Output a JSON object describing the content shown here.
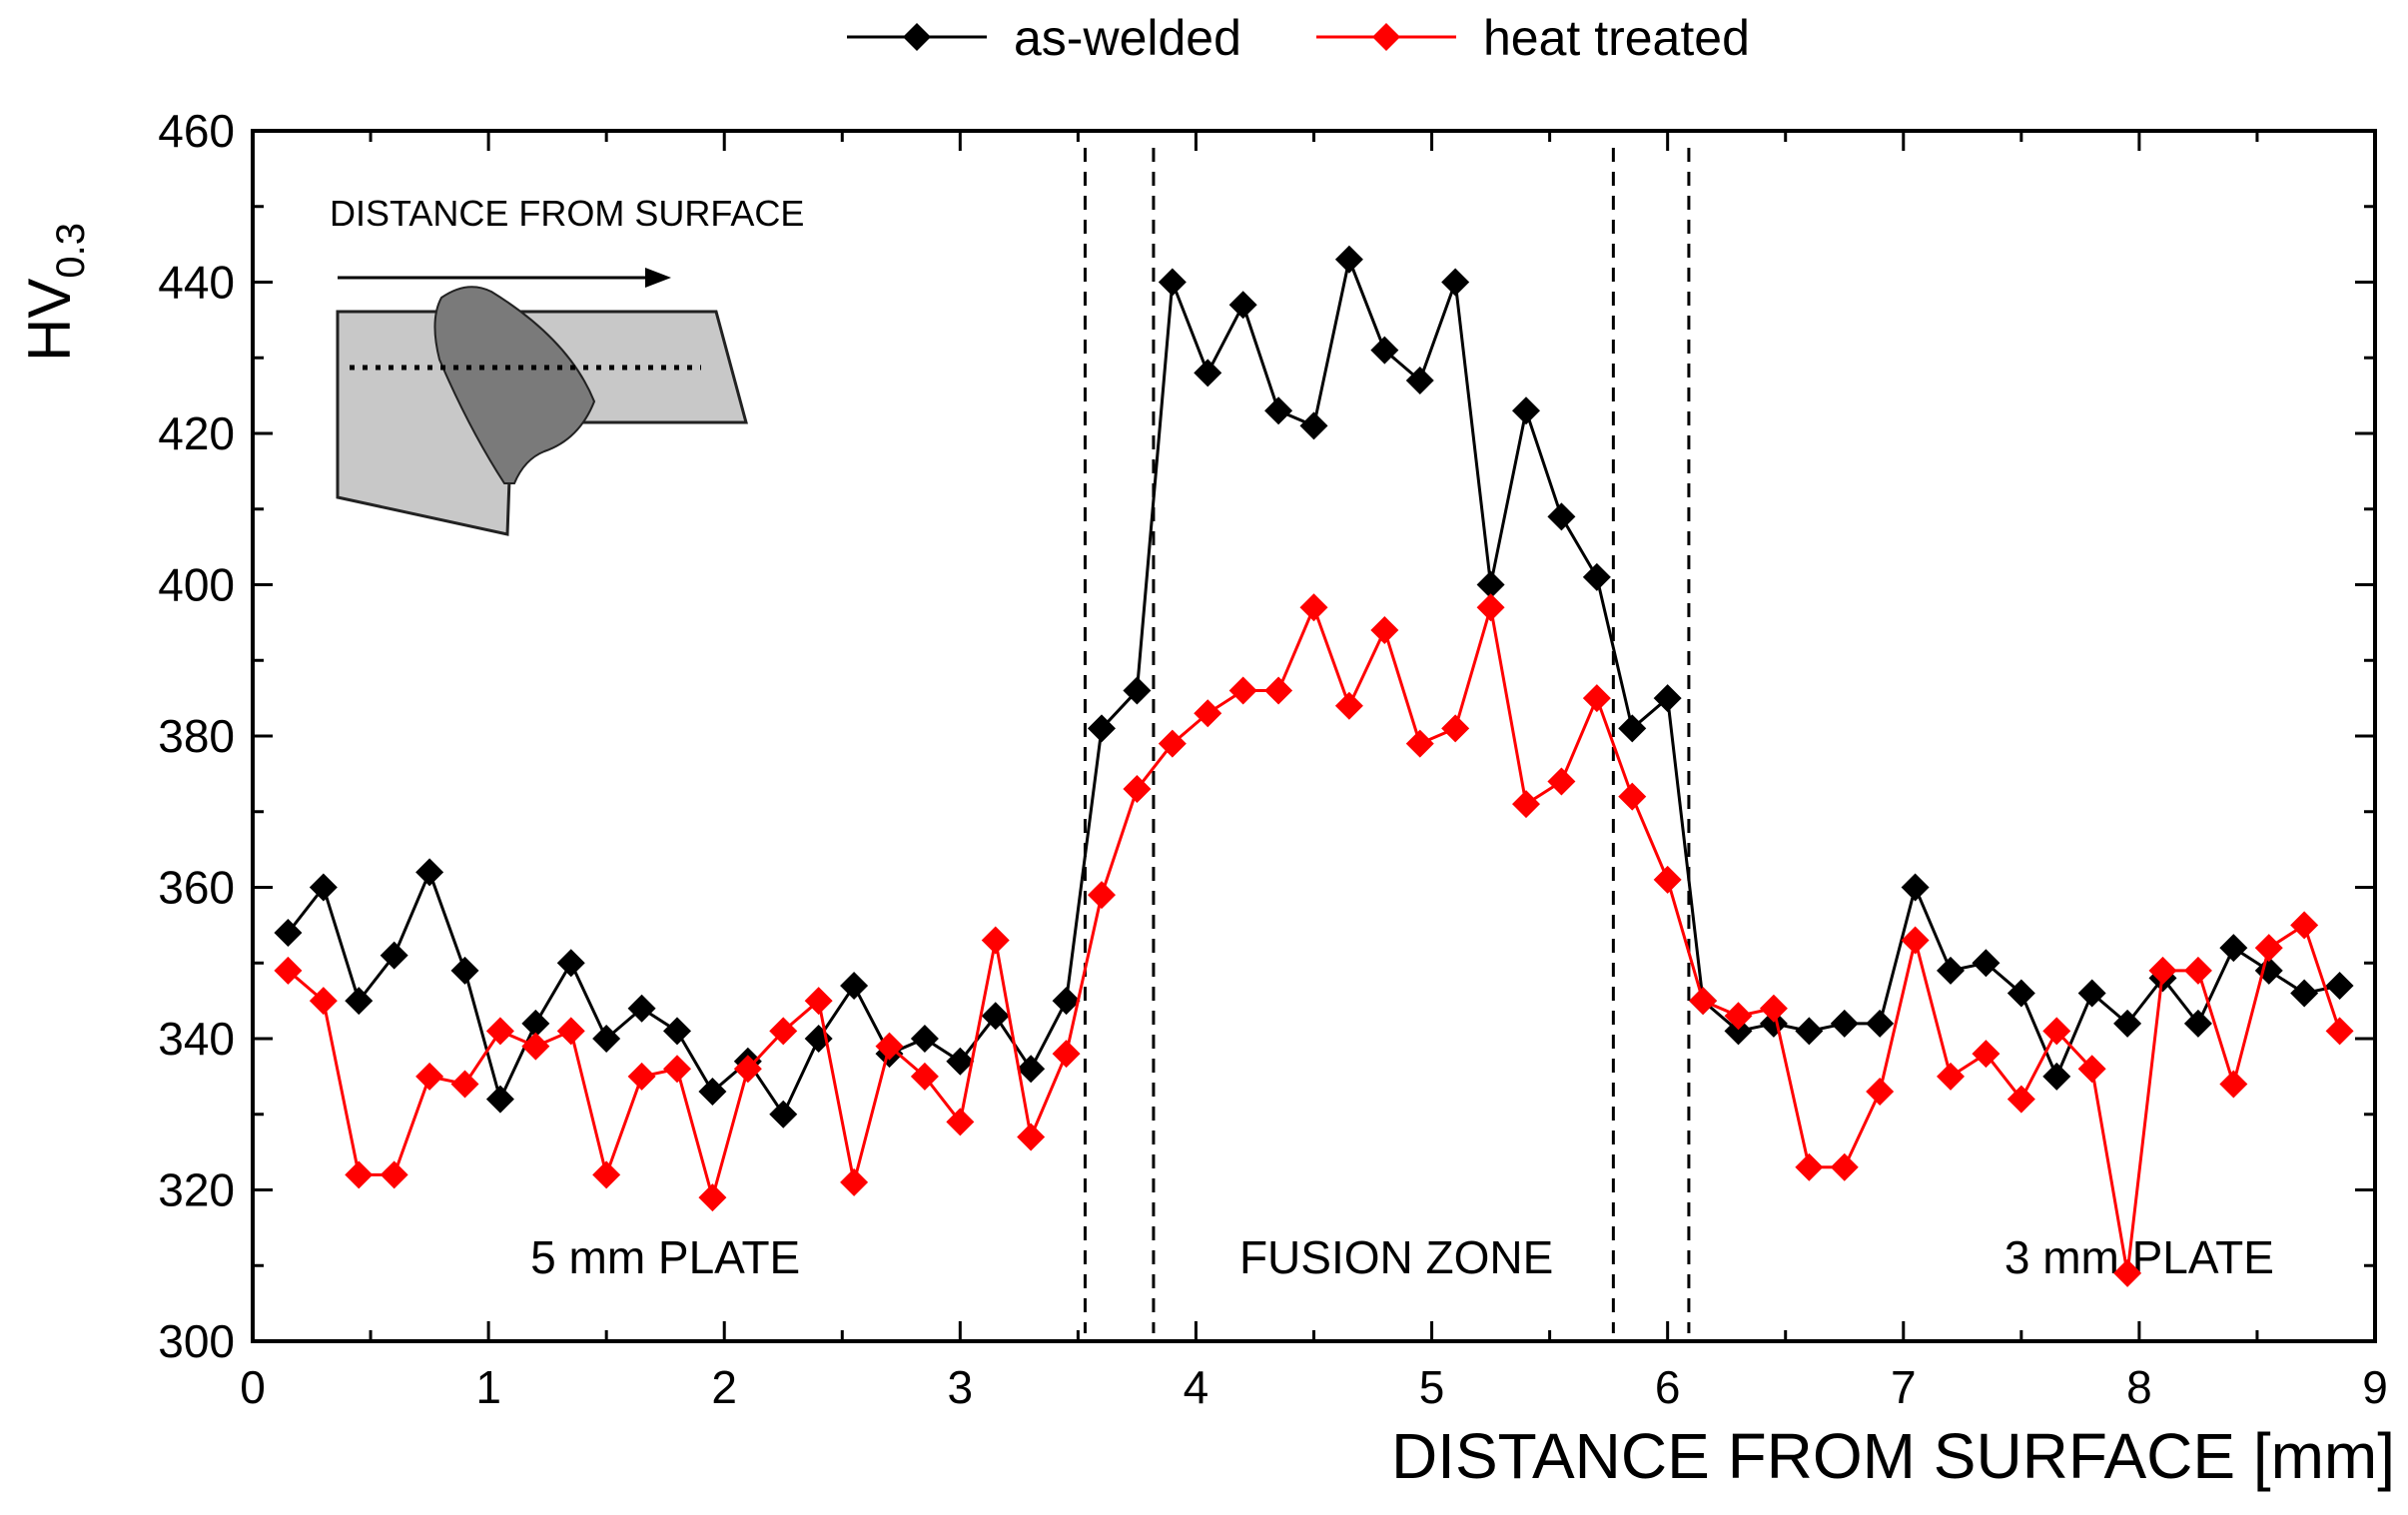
{
  "chart_data": {
    "type": "line",
    "title": "",
    "xlabel": "DISTANCE FROM SURFACE [mm]",
    "ylabel": "HV",
    "ylabel_subscript": "0.3",
    "xlim": [
      0,
      9
    ],
    "ylim": [
      300,
      460
    ],
    "xticks": [
      0,
      1,
      2,
      3,
      4,
      5,
      6,
      7,
      8,
      9
    ],
    "yticks": [
      300,
      320,
      340,
      360,
      380,
      400,
      420,
      440,
      460
    ],
    "legend_position": "top-center",
    "series": [
      {
        "name": "as-welded",
        "color": "#000000",
        "marker": "diamond",
        "x": [
          0.15,
          0.3,
          0.45,
          0.6,
          0.75,
          0.9,
          1.05,
          1.2,
          1.35,
          1.5,
          1.65,
          1.8,
          1.95,
          2.1,
          2.25,
          2.4,
          2.55,
          2.7,
          2.85,
          3.0,
          3.15,
          3.3,
          3.45,
          3.6,
          3.75,
          3.9,
          4.05,
          4.2,
          4.35,
          4.5,
          4.65,
          4.8,
          4.95,
          5.1,
          5.25,
          5.4,
          5.55,
          5.7,
          5.85,
          6.0,
          6.15,
          6.3,
          6.45,
          6.6,
          6.75,
          6.9,
          7.05,
          7.2,
          7.35,
          7.5,
          7.65,
          7.8,
          7.95,
          8.1,
          8.25,
          8.4,
          8.55,
          8.7,
          8.85
        ],
        "values": [
          354,
          360,
          345,
          351,
          362,
          349,
          332,
          342,
          350,
          340,
          344,
          341,
          333,
          337,
          330,
          340,
          347,
          338,
          340,
          337,
          343,
          336,
          345,
          381,
          386,
          440,
          428,
          437,
          423,
          421,
          443,
          431,
          427,
          440,
          400,
          423,
          409,
          401,
          381,
          385,
          345,
          341,
          342,
          341,
          342,
          342,
          360,
          349,
          350,
          346,
          335,
          346,
          342,
          348,
          342,
          352,
          349,
          346,
          347
        ]
      },
      {
        "name": "heat treated",
        "color": "#ff0000",
        "marker": "diamond",
        "x": [
          0.15,
          0.3,
          0.45,
          0.6,
          0.75,
          0.9,
          1.05,
          1.2,
          1.35,
          1.5,
          1.65,
          1.8,
          1.95,
          2.1,
          2.25,
          2.4,
          2.55,
          2.7,
          2.85,
          3.0,
          3.15,
          3.3,
          3.45,
          3.6,
          3.75,
          3.9,
          4.05,
          4.2,
          4.35,
          4.5,
          4.65,
          4.8,
          4.95,
          5.1,
          5.25,
          5.4,
          5.55,
          5.7,
          5.85,
          6.0,
          6.15,
          6.3,
          6.45,
          6.6,
          6.75,
          6.9,
          7.05,
          7.2,
          7.35,
          7.5,
          7.65,
          7.8,
          7.95,
          8.1,
          8.25,
          8.4,
          8.55,
          8.7,
          8.85
        ],
        "values": [
          349,
          345,
          322,
          322,
          335,
          334,
          341,
          339,
          341,
          322,
          335,
          336,
          319,
          336,
          341,
          345,
          321,
          339,
          335,
          329,
          353,
          327,
          338,
          359,
          373,
          379,
          383,
          386,
          386,
          397,
          384,
          394,
          379,
          381,
          397,
          371,
          374,
          385,
          372,
          361,
          345,
          343,
          344,
          323,
          323,
          333,
          353,
          335,
          338,
          332,
          341,
          336,
          309,
          349,
          349,
          334,
          352,
          355,
          341
        ]
      }
    ],
    "boundaries": [
      3.53,
      3.82,
      5.77,
      6.09
    ],
    "regions": [
      {
        "label": "5 mm PLATE",
        "x": 1.75,
        "y": 309
      },
      {
        "label": "FUSION ZONE",
        "x": 4.85,
        "y": 309
      },
      {
        "label": "3 mm PLATE",
        "x": 8.0,
        "y": 309
      }
    ],
    "inset": {
      "label": "DISTANCE FROM SURFACE"
    }
  }
}
